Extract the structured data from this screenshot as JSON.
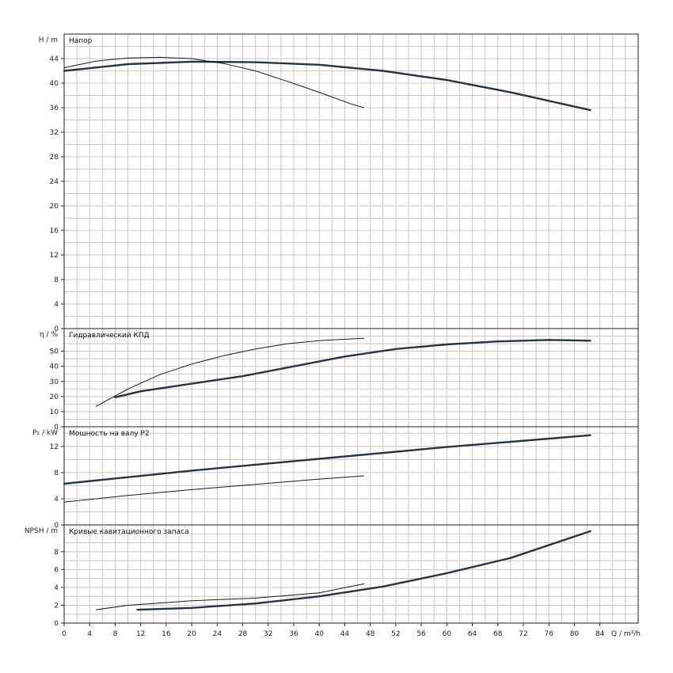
{
  "chart_data": {
    "type": "line",
    "x_axis": {
      "label": "Q / m³/h",
      "range": [
        0,
        90
      ],
      "ticks": [
        0,
        4,
        8,
        12,
        16,
        20,
        24,
        28,
        32,
        36,
        40,
        44,
        48,
        52,
        56,
        60,
        64,
        68,
        72,
        76,
        80,
        84
      ]
    },
    "grid": true,
    "panels": [
      {
        "id": "head",
        "title": "Напор",
        "ylabel": "H / m",
        "ylim": [
          0,
          48
        ],
        "yticks": [
          0,
          4,
          8,
          12,
          16,
          20,
          24,
          28,
          32,
          36,
          40,
          44
        ],
        "series": [
          {
            "style": "thick",
            "x": [
              0,
              10,
              20,
              30,
              40,
              50,
              60,
              70,
              82.5
            ],
            "y": [
              42.0,
              43.1,
              43.5,
              43.4,
              43.0,
              42.0,
              40.5,
              38.5,
              35.6
            ]
          },
          {
            "style": "thin",
            "x": [
              0,
              5,
              10,
              15,
              20,
              25,
              30,
              35,
              40,
              45,
              47
            ],
            "y": [
              42.5,
              43.6,
              44.1,
              44.2,
              44.0,
              43.2,
              42.0,
              40.3,
              38.5,
              36.6,
              36.0
            ]
          }
        ]
      },
      {
        "id": "efficiency",
        "title": "Гидравлический КПД",
        "ylabel": "η / %",
        "ylim": [
          0,
          65
        ],
        "yticks": [
          0,
          10,
          20,
          30,
          40,
          50
        ],
        "series": [
          {
            "style": "thick",
            "x": [
              8,
              12,
              20,
              28,
              36,
              44,
              52,
              60,
              68,
              76,
              82.5
            ],
            "y": [
              19.5,
              23.5,
              28.5,
              33.5,
              40,
              46.5,
              51.5,
              54.5,
              56.5,
              57.5,
              57.0
            ]
          },
          {
            "style": "thin",
            "x": [
              5,
              10,
              15,
              20,
              25,
              30,
              35,
              40,
              45,
              47
            ],
            "y": [
              13.5,
              25,
              34.5,
              41.5,
              47,
              51.5,
              55,
              57,
              58.2,
              58.5
            ]
          }
        ]
      },
      {
        "id": "power",
        "title": "Мощность на валу P2",
        "ylabel": "P₂ / kW",
        "ylim": [
          0,
          15
        ],
        "yticks": [
          0,
          4,
          8,
          12
        ],
        "series": [
          {
            "style": "thick",
            "x": [
              0,
              10,
              20,
              30,
              40,
              50,
              60,
              70,
              82.5
            ],
            "y": [
              6.3,
              7.3,
              8.3,
              9.2,
              10.1,
              11.0,
              11.9,
              12.7,
              13.7
            ]
          },
          {
            "style": "thin",
            "x": [
              0,
              10,
              20,
              30,
              40,
              47
            ],
            "y": [
              3.5,
              4.5,
              5.4,
              6.2,
              7.0,
              7.5
            ]
          }
        ]
      },
      {
        "id": "npsh",
        "title": "Кривые кавитационного запаса",
        "ylabel": "NPSH / m",
        "ylim": [
          0,
          11
        ],
        "yticks": [
          0,
          2,
          4,
          6,
          8
        ],
        "series": [
          {
            "style": "thick",
            "x": [
              11.5,
              20,
              30,
              40,
              50,
              60,
              70,
              82.5
            ],
            "y": [
              1.5,
              1.7,
              2.2,
              3.0,
              4.1,
              5.6,
              7.3,
              10.3
            ]
          },
          {
            "style": "thin",
            "x": [
              5,
              10,
              20,
              30,
              40,
              47
            ],
            "y": [
              1.5,
              2.0,
              2.5,
              2.8,
              3.4,
              4.4
            ]
          }
        ]
      }
    ]
  }
}
